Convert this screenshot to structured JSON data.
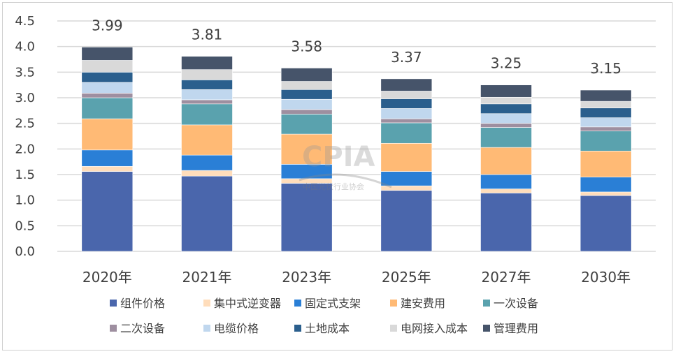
{
  "chart_data": {
    "type": "bar",
    "stacked": true,
    "categories": [
      "2020年",
      "2021年",
      "2023年",
      "2025年",
      "2027年",
      "2030年"
    ],
    "totals": [
      "3.99",
      "3.81",
      "3.58",
      "3.37",
      "3.25",
      "3.15"
    ],
    "ylim": [
      0,
      4.5
    ],
    "yticks": [
      "0.0",
      "0.5",
      "1.0",
      "1.5",
      "2.0",
      "2.5",
      "3.0",
      "3.5",
      "4.0",
      "4.5"
    ],
    "grid": true,
    "legend_position": "bottom",
    "series": [
      {
        "name": "组件价格",
        "color": "#4A66AC",
        "values": [
          1.56,
          1.47,
          1.33,
          1.19,
          1.14,
          1.09
        ]
      },
      {
        "name": "集中式逆变器",
        "color": "#FFDDBB",
        "values": [
          0.1,
          0.11,
          0.09,
          0.09,
          0.08,
          0.07
        ]
      },
      {
        "name": "固定式支架",
        "color": "#2A7FD6",
        "values": [
          0.32,
          0.3,
          0.28,
          0.28,
          0.28,
          0.29
        ]
      },
      {
        "name": "建安费用",
        "color": "#FFBA75",
        "values": [
          0.61,
          0.59,
          0.59,
          0.55,
          0.53,
          0.51
        ]
      },
      {
        "name": "一次设备",
        "color": "#5AA2AE",
        "values": [
          0.41,
          0.41,
          0.39,
          0.4,
          0.39,
          0.39
        ]
      },
      {
        "name": "二次设备",
        "color": "#9E8FA0",
        "values": [
          0.09,
          0.08,
          0.09,
          0.08,
          0.08,
          0.08
        ]
      },
      {
        "name": "电缆价格",
        "color": "#C0D7EE",
        "values": [
          0.21,
          0.2,
          0.2,
          0.2,
          0.19,
          0.18
        ]
      },
      {
        "name": "土地成本",
        "color": "#2B5F8D",
        "values": [
          0.2,
          0.19,
          0.19,
          0.19,
          0.19,
          0.19
        ]
      },
      {
        "name": "电网接入成本",
        "color": "#D9D9D9",
        "values": [
          0.23,
          0.2,
          0.16,
          0.15,
          0.13,
          0.13
        ]
      },
      {
        "name": "管理费用",
        "color": "#46546A",
        "values": [
          0.26,
          0.26,
          0.26,
          0.24,
          0.24,
          0.22
        ]
      }
    ],
    "watermark": "CPIA 中国光伏行业协会 China Photovoltaic Industry Association"
  }
}
